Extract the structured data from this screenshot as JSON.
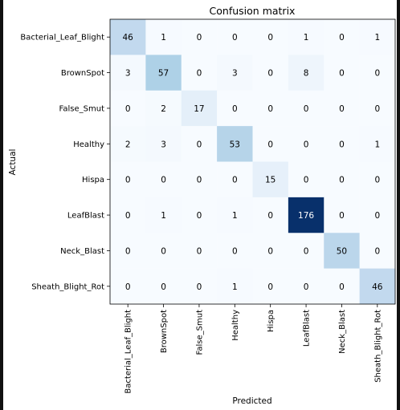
{
  "chart_data": {
    "type": "heatmap",
    "title": "Confusion matrix",
    "xlabel": "Predicted",
    "ylabel": "Actual",
    "colormap": "Blues",
    "color_low": "#f7fbff",
    "color_high": "#08306b",
    "row_labels": [
      "Bacterial_Leaf_Blight",
      "BrownSpot",
      "False_Smut",
      "Healthy",
      "Hispa",
      "LeafBlast",
      "Neck_Blast",
      "Sheath_Blight_Rot"
    ],
    "col_labels": [
      "Bacterial_Leaf_Blight",
      "BrownSpot",
      "False_Smut",
      "Healthy",
      "Hispa",
      "LeafBlast",
      "Neck_Blast",
      "Sheath_Blight_Rot"
    ],
    "matrix": [
      [
        46,
        1,
        0,
        0,
        0,
        1,
        0,
        1
      ],
      [
        3,
        57,
        0,
        3,
        0,
        8,
        0,
        0
      ],
      [
        0,
        2,
        17,
        0,
        0,
        0,
        0,
        0
      ],
      [
        2,
        3,
        0,
        53,
        0,
        0,
        0,
        1
      ],
      [
        0,
        0,
        0,
        0,
        15,
        0,
        0,
        0
      ],
      [
        0,
        1,
        0,
        1,
        0,
        176,
        0,
        0
      ],
      [
        0,
        0,
        0,
        0,
        0,
        0,
        50,
        0
      ],
      [
        0,
        0,
        0,
        1,
        0,
        0,
        0,
        46
      ]
    ],
    "vmin": 0,
    "vmax": 176,
    "grid": false
  }
}
